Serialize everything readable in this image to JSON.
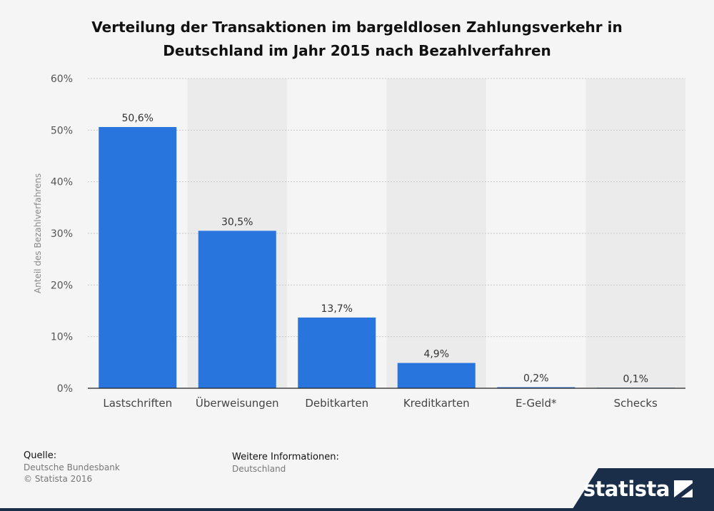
{
  "title_line1": "Verteilung der Transaktionen im bargeldlosen Zahlungsverkehr in",
  "title_line2": "Deutschland im Jahr 2015 nach Bezahlverfahren",
  "chart_data": {
    "type": "bar",
    "categories": [
      "Lastschriften",
      "Überweisungen",
      "Debitkarten",
      "Kreditkarten",
      "E-Geld*",
      "Schecks"
    ],
    "values": [
      50.6,
      30.5,
      13.7,
      4.9,
      0.2,
      0.1
    ],
    "data_labels": [
      "50,6%",
      "30,5%",
      "13,7%",
      "4,9%",
      "0,2%",
      "0,1%"
    ],
    "ylabel": "Anteil des Bezahlverfahrens",
    "ylim": [
      0,
      60
    ],
    "yticks": [
      0,
      10,
      20,
      30,
      40,
      50,
      60
    ],
    "ytick_labels": [
      "0%",
      "10%",
      "20%",
      "30%",
      "40%",
      "50%",
      "60%"
    ],
    "grid": true,
    "bar_color": "#2876dd",
    "stripe_color": "#ebebeb"
  },
  "footer": {
    "source_heading": "Quelle:",
    "source_lines": [
      "Deutsche Bundesbank",
      "© Statista 2016"
    ],
    "info_heading": "Weitere Informationen:",
    "info_lines": [
      "Deutschland"
    ]
  },
  "logo": {
    "text": "statista",
    "band_color": "#1a2e4a"
  }
}
